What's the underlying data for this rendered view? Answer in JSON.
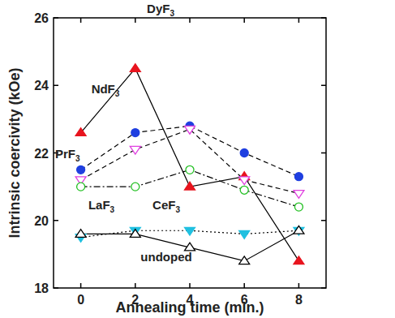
{
  "chart_data": {
    "type": "line",
    "x_label": "Annealing time (min.)",
    "y_label": "Intrinsic coercivity (kOe)",
    "x": [
      0,
      2,
      4,
      6,
      8
    ],
    "xlim": [
      -1,
      9
    ],
    "xticks": [
      0,
      2,
      4,
      6,
      8
    ],
    "ylim": [
      18,
      26
    ],
    "yticks": [
      18,
      20,
      22,
      24,
      26
    ],
    "grid": false,
    "series": [
      {
        "name": "DyF3",
        "color": "#e8141e",
        "marker": "filled-triangle-up",
        "line_style": "solid",
        "values": [
          22.6,
          24.5,
          21.0,
          21.3,
          18.8
        ]
      },
      {
        "name": "NdF3",
        "color": "#1f3fe0",
        "marker": "filled-circle",
        "line_style": "dashed",
        "values": [
          21.5,
          22.6,
          22.8,
          22.0,
          21.3
        ]
      },
      {
        "name": "PrF3",
        "color": "#e040e0",
        "marker": "open-triangle-down",
        "line_style": "dashed",
        "values": [
          21.2,
          22.1,
          22.7,
          21.2,
          20.8
        ]
      },
      {
        "name": "LaF3",
        "color": "#22c022",
        "marker": "open-circle",
        "line_style": "dashdot",
        "values": [
          21.0,
          21.0,
          21.5,
          20.9,
          20.4
        ]
      },
      {
        "name": "CeF3",
        "color": "#20c0e0",
        "marker": "filled-triangle-down",
        "line_style": "dotted",
        "values": [
          19.5,
          19.7,
          19.7,
          19.6,
          19.7
        ]
      },
      {
        "name": "undoped",
        "color": "#000000",
        "marker": "open-triangle-up",
        "line_style": "solid",
        "values": [
          19.6,
          19.6,
          19.2,
          18.8,
          19.7
        ]
      }
    ]
  }
}
